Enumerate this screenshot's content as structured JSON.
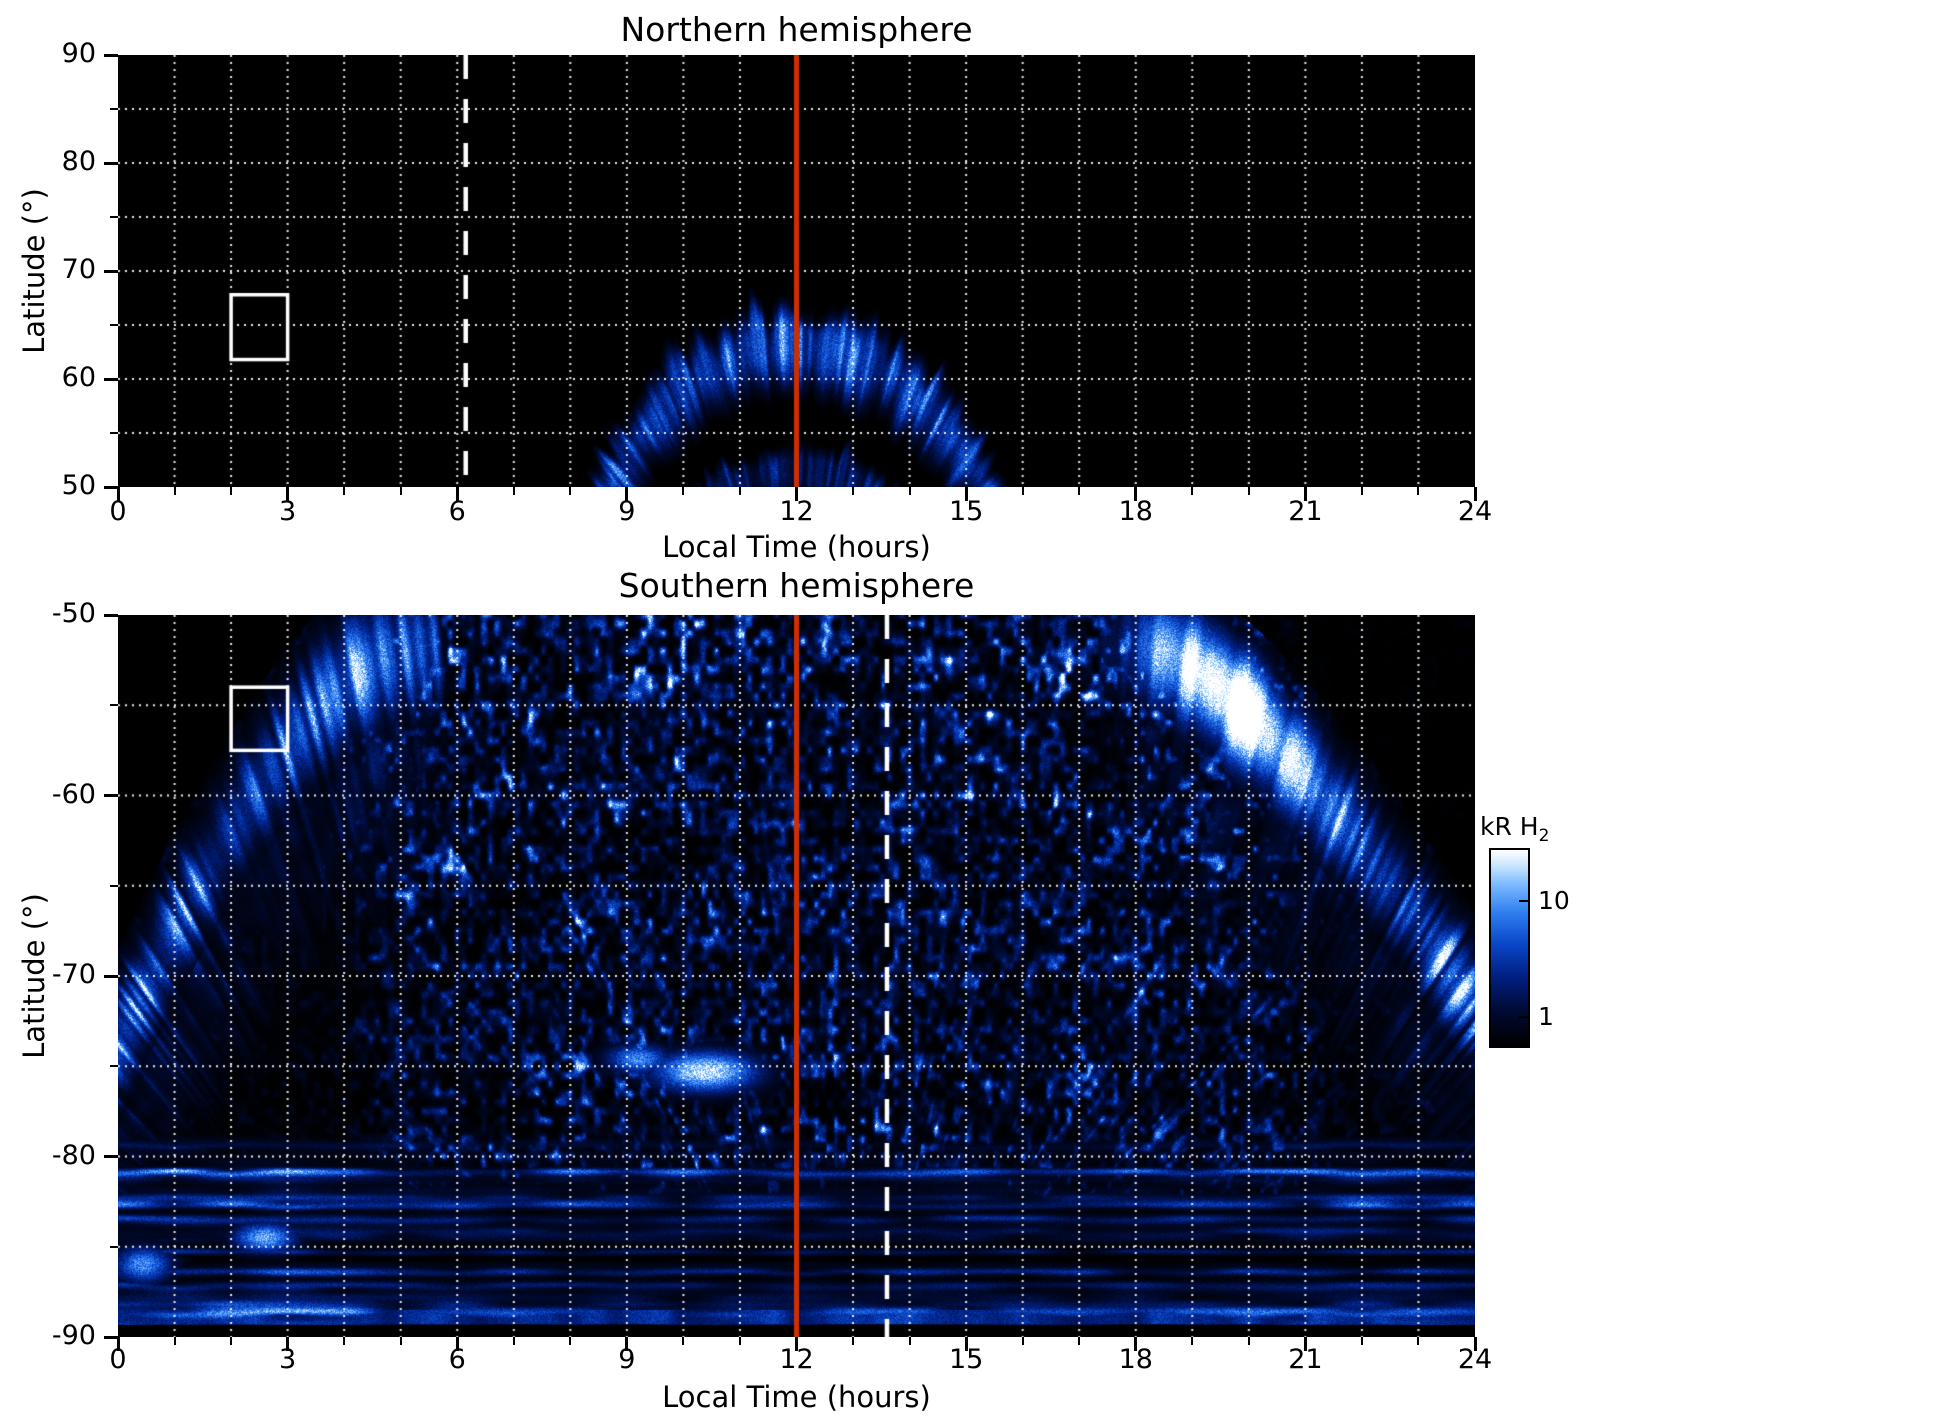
{
  "colors": {
    "red_line": "#cf2e00",
    "grid": "#ffffff",
    "dashed_line": "#ffffff",
    "box": "#ffffff",
    "plot_bg": "#000000",
    "text": "#000000"
  },
  "colormap": [
    [
      0.0,
      "#000000"
    ],
    [
      0.18,
      "#000a33"
    ],
    [
      0.35,
      "#001f80"
    ],
    [
      0.52,
      "#0a46c8"
    ],
    [
      0.68,
      "#2e7ef0"
    ],
    [
      0.82,
      "#7ab8ff"
    ],
    [
      0.92,
      "#c8e6ff"
    ],
    [
      1.0,
      "#ffffff"
    ]
  ],
  "colorbar": {
    "label": "kR H",
    "label_sub": "2",
    "ticks": [
      {
        "label": "10",
        "frac_from_top": 0.27
      },
      {
        "label": "1",
        "frac_from_top": 0.86
      }
    ]
  },
  "chart_data": [
    {
      "id": "north",
      "type": "heatmap",
      "title": "Northern hemisphere",
      "xlabel": "Local Time (hours)",
      "ylabel": "Latitude (°)",
      "xlim": [
        0,
        24
      ],
      "ylim": [
        50,
        90
      ],
      "xticks": [
        0,
        3,
        6,
        9,
        12,
        15,
        18,
        21,
        24
      ],
      "yticks": [
        90,
        80,
        70,
        60,
        50
      ],
      "x_minor_step": 1,
      "y_minor_step": 5,
      "grid": {
        "x_step": 1,
        "y_step": 5,
        "style": "dotted"
      },
      "red_line_x": 12,
      "dashed_line_x": 6.15,
      "white_box": {
        "x0": 2.0,
        "x1": 3.0,
        "lat0": 61.8,
        "lat1": 67.8
      },
      "aurora": {
        "main_oval": {
          "cx": 12,
          "cy": 30,
          "a_out": 4.45,
          "b_out": 38,
          "a_in": 3.6,
          "b_in": 27,
          "intensity": 1.05
        },
        "inner_arc": {
          "cx": 12,
          "cy": 30,
          "a_out": 3.35,
          "b_out": 24.5,
          "a_in": 2.95,
          "b_in": 18,
          "intensity": 0.62
        },
        "notch": {
          "x": 12.35,
          "lat": 69,
          "rx": 0.6,
          "ry": 4.5
        }
      }
    },
    {
      "id": "south",
      "type": "heatmap",
      "title": "Southern hemisphere",
      "xlabel": "Local Time (hours)",
      "ylabel": "Latitude (°)",
      "xlim": [
        0,
        24
      ],
      "ylim": [
        -90,
        -50
      ],
      "xticks": [
        0,
        3,
        6,
        9,
        12,
        15,
        18,
        21,
        24
      ],
      "yticks": [
        -50,
        -60,
        -70,
        -80,
        -90
      ],
      "x_minor_step": 1,
      "y_minor_step": 5,
      "grid": {
        "x_step": 1,
        "y_step": 5,
        "style": "dotted"
      },
      "red_line_x": 12,
      "dashed_line_x": 13.6,
      "white_box": {
        "x0": 2.0,
        "x1": 3.0,
        "lat0": -57.5,
        "lat1": -54.0
      },
      "aurora": {
        "left_arc": {
          "h_top": 5.0,
          "drop": 22,
          "exp": 1.55,
          "sigma": 3.2,
          "peak_d": -2,
          "intensity": 1.25
        },
        "right_arc": {
          "h_start": 18.0,
          "drop": 20,
          "exp": 1.5,
          "sigma": 3.0,
          "intensity": 1.2,
          "white_spot": {
            "h": 19.6,
            "sh": 1.4,
            "d": -1.5,
            "sd": 2.6,
            "amp": 0.85
          }
        },
        "speckle": {
          "center_h": 12.8,
          "center_lat": -97,
          "gain": 2.6
        },
        "blobs": [
          {
            "h": 10.4,
            "lat": -75.3,
            "sh": 0.9,
            "slat": 1.1,
            "amp": 0.95
          },
          {
            "h": 9.2,
            "lat": -74.6,
            "sh": 0.55,
            "slat": 0.8,
            "amp": 0.7
          },
          {
            "h": 2.6,
            "lat": -84.5,
            "sh": 0.55,
            "slat": 0.8,
            "amp": 0.8
          },
          {
            "h": 0.45,
            "lat": -86.0,
            "sh": 0.5,
            "slat": 1.0,
            "amp": 0.7
          }
        ],
        "polar_bands": {
          "start_lat": -78.5,
          "black_below": -89.35,
          "thin_band_top": -88.5,
          "thin_band_bottom": -89.3
        }
      }
    }
  ]
}
